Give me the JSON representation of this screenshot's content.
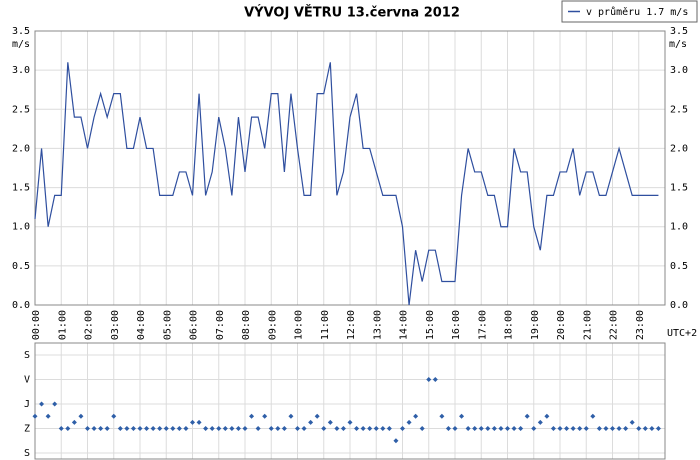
{
  "chart_data": [
    {
      "type": "line",
      "title": "VÝVOJ VĚTRU  13.června 2012",
      "ylabel": "m/s",
      "xlabel": "UTC+2",
      "legend": "top-right",
      "grid": true,
      "x": [
        0,
        0.25,
        0.5,
        0.75,
        1,
        1.25,
        1.5,
        1.75,
        2,
        2.25,
        2.5,
        2.75,
        3,
        3.25,
        3.5,
        3.75,
        4,
        4.25,
        4.5,
        4.75,
        5,
        5.25,
        5.5,
        5.75,
        6,
        6.25,
        6.5,
        6.75,
        7,
        7.25,
        7.5,
        7.75,
        8,
        8.25,
        8.5,
        8.75,
        9,
        9.25,
        9.5,
        9.75,
        10,
        10.25,
        10.5,
        10.75,
        11,
        11.25,
        11.5,
        11.75,
        12,
        12.25,
        12.5,
        12.75,
        13,
        13.25,
        13.5,
        13.75,
        14,
        14.25,
        14.5,
        14.75,
        15,
        15.25,
        15.5,
        15.75,
        16,
        16.25,
        16.5,
        16.75,
        17,
        17.25,
        17.5,
        17.75,
        18,
        18.25,
        18.5,
        18.75,
        19,
        19.25,
        19.5,
        19.75,
        20,
        20.25,
        20.5,
        20.75,
        21,
        21.25,
        21.5,
        21.75,
        22,
        22.25,
        22.5,
        22.75,
        23,
        23.25,
        23.5,
        23.75
      ],
      "series": [
        {
          "name": "v průměru 1.7 m/s",
          "color": "#2f4f9f",
          "values": [
            1.1,
            2.0,
            1.0,
            1.4,
            1.4,
            3.1,
            2.4,
            2.4,
            2.0,
            2.4,
            2.7,
            2.4,
            2.7,
            2.7,
            2.0,
            2.0,
            2.4,
            2.0,
            2.0,
            1.4,
            1.4,
            1.4,
            1.7,
            1.7,
            1.4,
            2.7,
            1.4,
            1.7,
            2.4,
            2.0,
            1.4,
            2.4,
            1.7,
            2.4,
            2.4,
            2.0,
            2.7,
            2.7,
            1.7,
            2.7,
            2.0,
            1.4,
            1.4,
            2.7,
            2.7,
            3.1,
            1.4,
            1.7,
            2.4,
            2.7,
            2.0,
            2.0,
            1.7,
            1.4,
            1.4,
            1.4,
            1.0,
            0.0,
            0.7,
            0.3,
            0.7,
            0.7,
            0.3,
            0.3,
            0.3,
            1.4,
            2.0,
            1.7,
            1.7,
            1.4,
            1.4,
            1.0,
            1.0,
            2.0,
            1.7,
            1.7,
            1.0,
            0.7,
            1.4,
            1.4,
            1.7,
            1.7,
            2.0,
            1.4,
            1.7,
            1.7,
            1.4,
            1.4,
            1.7,
            2.0,
            1.7,
            1.4,
            1.4,
            1.4,
            1.4,
            1.4
          ]
        }
      ],
      "xlim": [
        0,
        24
      ],
      "xticks": [
        {
          "value": 0,
          "label": "00:00"
        },
        {
          "value": 1,
          "label": "01:00"
        },
        {
          "value": 2,
          "label": "02:00"
        },
        {
          "value": 3,
          "label": "03:00"
        },
        {
          "value": 4,
          "label": "04:00"
        },
        {
          "value": 5,
          "label": "05:00"
        },
        {
          "value": 6,
          "label": "06:00"
        },
        {
          "value": 7,
          "label": "07:00"
        },
        {
          "value": 8,
          "label": "08:00"
        },
        {
          "value": 9,
          "label": "09:00"
        },
        {
          "value": 10,
          "label": "10:00"
        },
        {
          "value": 11,
          "label": "11:00"
        },
        {
          "value": 12,
          "label": "12:00"
        },
        {
          "value": 13,
          "label": "13:00"
        },
        {
          "value": 14,
          "label": "14:00"
        },
        {
          "value": 15,
          "label": "15:00"
        },
        {
          "value": 16,
          "label": "16:00"
        },
        {
          "value": 17,
          "label": "17:00"
        },
        {
          "value": 18,
          "label": "18:00"
        },
        {
          "value": 19,
          "label": "19:00"
        },
        {
          "value": 20,
          "label": "20:00"
        },
        {
          "value": 21,
          "label": "21:00"
        },
        {
          "value": 22,
          "label": "22:00"
        },
        {
          "value": 23,
          "label": "23:00"
        }
      ],
      "ylim": [
        0,
        3.5
      ],
      "yticks": [
        {
          "value": 0,
          "label": "0.0"
        },
        0.5,
        {
          "value": 1,
          "label": "1.0"
        },
        1.5,
        {
          "value": 2,
          "label": "2.0"
        },
        2.5,
        {
          "value": 3,
          "label": "3.0"
        },
        3.5
      ]
    },
    {
      "type": "scatter",
      "color": "#2f5fa8",
      "grid": true,
      "x": [
        0,
        0.25,
        0.5,
        0.75,
        1,
        1.25,
        1.5,
        1.75,
        2,
        2.25,
        2.5,
        2.75,
        3,
        3.25,
        3.5,
        3.75,
        4,
        4.25,
        4.5,
        4.75,
        5,
        5.25,
        5.5,
        5.75,
        6,
        6.25,
        6.5,
        6.75,
        7,
        7.25,
        7.5,
        7.75,
        8,
        8.25,
        8.5,
        8.75,
        9,
        9.25,
        9.5,
        9.75,
        10,
        10.25,
        10.5,
        10.75,
        11,
        11.25,
        11.5,
        11.75,
        12,
        12.25,
        12.5,
        12.75,
        13,
        13.25,
        13.5,
        13.75,
        14,
        14.25,
        14.5,
        14.75,
        15,
        15.25,
        15.5,
        15.75,
        16,
        16.25,
        16.5,
        16.75,
        17,
        17.25,
        17.5,
        17.75,
        18,
        18.25,
        18.5,
        18.75,
        19,
        19.25,
        19.5,
        19.75,
        20,
        20.25,
        20.5,
        20.75,
        21,
        21.25,
        21.5,
        21.75,
        22,
        22.25,
        22.5,
        22.75,
        23,
        23.25,
        23.5,
        23.75
      ],
      "values": [
        225,
        180,
        225,
        180,
        270,
        270,
        247.5,
        225,
        270,
        270,
        270,
        270,
        225,
        270,
        270,
        270,
        270,
        270,
        270,
        270,
        270,
        270,
        270,
        270,
        247.5,
        247.5,
        270,
        270,
        270,
        270,
        270,
        270,
        270,
        225,
        270,
        225,
        270,
        270,
        270,
        225,
        270,
        270,
        247.5,
        225,
        270,
        247.5,
        270,
        270,
        247.5,
        270,
        270,
        270,
        270,
        270,
        270,
        315,
        270,
        247.5,
        225,
        270,
        90,
        90,
        225,
        270,
        270,
        225,
        270,
        270,
        270,
        270,
        270,
        270,
        270,
        270,
        270,
        225,
        270,
        247.5,
        225,
        270,
        270,
        270,
        270,
        270,
        270,
        225,
        270,
        270,
        270,
        270,
        270,
        247.5,
        270,
        270,
        270,
        270
      ],
      "xlim": [
        0,
        24
      ],
      "ylim": [
        360,
        0
      ],
      "yticks": [
        {
          "value": 0,
          "label": "S"
        },
        {
          "value": 90,
          "label": "V"
        },
        {
          "value": 180,
          "label": "J"
        },
        {
          "value": 270,
          "label": "Z"
        },
        {
          "value": 360,
          "label": "S"
        }
      ]
    }
  ]
}
